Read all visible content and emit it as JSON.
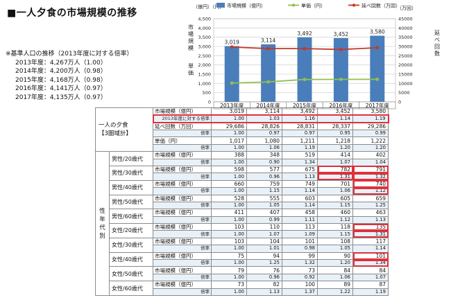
{
  "title": "■一人夕食の市場規模の推移",
  "base_note": {
    "header": "※基準人口の推移（2013年度に対する倍率）",
    "rows": [
      "2013年度：4,267万人（1.00）",
      "2014年度：4,200万人（0.98）",
      "2015年度：4,168万人（0.98）",
      "2016年度：4,141万人（0.97）",
      "2017年度：4,135万人（0.97）"
    ]
  },
  "chart_data": {
    "type": "bar",
    "categories": [
      "2013年度",
      "2014年度",
      "2015年度",
      "2016年度",
      "2017年度"
    ],
    "series": [
      {
        "name": "市場規模（億円）",
        "type": "bar",
        "axis": "left",
        "values": [
          3019,
          3114,
          3492,
          3452,
          3580
        ],
        "color": "#4a7ebb"
      },
      {
        "name": "単価（円）",
        "type": "line",
        "axis": "left",
        "values": [
          1017,
          1080,
          1211,
          1218,
          1222
        ],
        "color": "#92c050"
      },
      {
        "name": "延べ回数（万回）",
        "type": "line",
        "axis": "right",
        "values": [
          29686,
          28826,
          28831,
          28337,
          29286
        ],
        "color": "#c0392b"
      }
    ],
    "bar_labels": [
      "3,019",
      "3,114",
      "3,492",
      "3,452",
      "3,580"
    ],
    "y_left": {
      "unit": "（億円）（円）",
      "ylim": [
        0,
        4500
      ],
      "ticks": [
        "0",
        "500",
        "1,000",
        "1,500",
        "2,000",
        "2,500",
        "3,000",
        "3,500",
        "4,000",
        "4,500"
      ],
      "label_top": "市場規模",
      "label_bottom": "単価"
    },
    "y_right": {
      "unit": "（万回）",
      "ylim": [
        0,
        45000
      ],
      "ticks": [
        "0",
        "5000",
        "10000",
        "15000",
        "20000",
        "25000",
        "30000",
        "35000",
        "40000",
        "45000"
      ],
      "label": "延べ回数"
    },
    "grid": true,
    "legend_position": "top"
  },
  "table": {
    "years": [
      "2013年度",
      "2014年度",
      "2015年度",
      "2016年度",
      "2017年度"
    ],
    "total_group": "一人の夕食",
    "total_group_sub": "【3圏域計】",
    "total_rows": [
      {
        "label": "市場規模（億円）",
        "values": [
          "3,019",
          "3,114",
          "3,492",
          "3,452",
          "3,580"
        ]
      },
      {
        "label": "2013年度に対する倍率",
        "values": [
          "1.00",
          "1.03",
          "1.16",
          "1.14",
          "1.19"
        ],
        "ratio": true,
        "highlight": true
      },
      {
        "label": "延べ回数（万回）",
        "values": [
          "29,686",
          "28,826",
          "28,831",
          "28,337",
          "29,286"
        ]
      },
      {
        "label": "倍率",
        "values": [
          "1.00",
          "0.97",
          "0.97",
          "0.95",
          "0.99"
        ],
        "ratio": true
      },
      {
        "label": "単価（円）",
        "values": [
          "1,017",
          "1,080",
          "1,211",
          "1,218",
          "1,222"
        ]
      },
      {
        "label": "倍率",
        "values": [
          "1.00",
          "1.06",
          "1.19",
          "1.20",
          "1.20"
        ],
        "ratio": true
      }
    ],
    "segment_group": "性年代別",
    "segment_row_label": "市場規模（億円）",
    "segment_ratio_label": "倍率",
    "segments": [
      {
        "name": "男性/20歳代",
        "values": [
          "388",
          "348",
          "519",
          "414",
          "402"
        ],
        "ratios": [
          "1.00",
          "0.90",
          "1.34",
          "1.07",
          "1.04"
        ]
      },
      {
        "name": "男性/30歳代",
        "values": [
          "598",
          "577",
          "675",
          "782",
          "791"
        ],
        "ratios": [
          "1.00",
          "0.96",
          "1.13",
          "1.31",
          "1.32"
        ],
        "hl": [
          3,
          4
        ]
      },
      {
        "name": "男性/40歳代",
        "values": [
          "660",
          "759",
          "749",
          "701",
          "740"
        ],
        "ratios": [
          "1.00",
          "1.15",
          "1.14",
          "1.06",
          "1.12"
        ],
        "hl": [
          4
        ]
      },
      {
        "name": "男性/50歳代",
        "values": [
          "528",
          "555",
          "603",
          "605",
          "659"
        ],
        "ratios": [
          "1.00",
          "1.05",
          "1.14",
          "1.15",
          "1.25"
        ]
      },
      {
        "name": "男性/60歳代",
        "values": [
          "411",
          "407",
          "458",
          "460",
          "463"
        ],
        "ratios": [
          "1.00",
          "0.99",
          "1.11",
          "1.12",
          "1.13"
        ]
      },
      {
        "name": "女性/20歳代",
        "values": [
          "103",
          "110",
          "113",
          "118",
          "135"
        ],
        "ratios": [
          "1.00",
          "1.07",
          "1.09",
          "1.15",
          "1.31"
        ],
        "hl": [
          4
        ]
      },
      {
        "name": "女性/30歳代",
        "values": [
          "103",
          "104",
          "101",
          "108",
          "117"
        ],
        "ratios": [
          "1.00",
          "1.01",
          "0.98",
          "1.05",
          "1.14"
        ]
      },
      {
        "name": "女性/40歳代",
        "values": [
          "75",
          "94",
          "99",
          "90",
          "101"
        ],
        "ratios": [
          "1.00",
          "1.25",
          "1.32",
          "1.20",
          "1.34"
        ],
        "hl": [
          4
        ]
      },
      {
        "name": "女性/50歳代",
        "values": [
          "79",
          "76",
          "73",
          "84",
          "84"
        ],
        "ratios": [
          "1.00",
          "0.96",
          "0.92",
          "1.06",
          "1.07"
        ]
      },
      {
        "name": "女性/60歳代",
        "values": [
          "73",
          "82",
          "100",
          "89",
          "87"
        ],
        "ratios": [
          "1.00",
          "1.13",
          "1.37",
          "1.22",
          "1.19"
        ]
      }
    ]
  }
}
